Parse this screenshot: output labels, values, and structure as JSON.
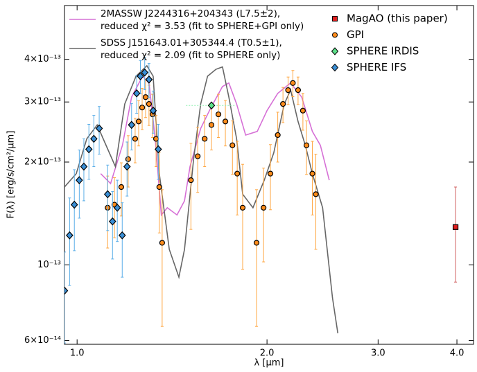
{
  "chart_data": {
    "type": "line",
    "x_label": "λ [μm]",
    "y_label": "F(λ) [erg/s/cm²/μm]",
    "x_log": true,
    "y_log": true,
    "xlim": [
      0.955,
      4.25
    ],
    "ylim": [
      5.85e-14,
      5.75e-13
    ],
    "xticks": [
      {
        "value": 1,
        "label": "1.0"
      },
      {
        "value": 2,
        "label": "2.0"
      },
      {
        "value": 3,
        "label": "3.0"
      },
      {
        "value": 4,
        "label": "4.0"
      }
    ],
    "yticks": [
      {
        "value": 6e-14,
        "label": "6×10⁻¹⁴"
      },
      {
        "value": 1e-13,
        "label": "10⁻¹³"
      },
      {
        "value": 2e-13,
        "label": "2×10⁻¹³"
      },
      {
        "value": 3e-13,
        "label": "3×10⁻¹³"
      },
      {
        "value": 4e-13,
        "label": "4×10⁻¹³"
      }
    ],
    "series": [
      {
        "type": "line",
        "name": "2MASSW J2244316+204343 (L7.5±2),",
        "fit_note": "reduced χ² = 3.53 (fit to SPHERE+GPI only)",
        "color": "#d670d6",
        "x": [
          1.09,
          1.13,
          1.18,
          1.22,
          1.27,
          1.3,
          1.33,
          1.36,
          1.39,
          1.44,
          1.48,
          1.51,
          1.57,
          1.63,
          1.7,
          1.74,
          1.79,
          1.85,
          1.93,
          2.0,
          2.08,
          2.18,
          2.27,
          2.36,
          2.43,
          2.51
        ],
        "values": [
          1.85e-13,
          1.73e-13,
          2.24e-13,
          3.1e-13,
          3.57e-13,
          3.41e-13,
          2.34e-13,
          1.4e-13,
          1.47e-13,
          1.4e-13,
          1.54e-13,
          1.94e-13,
          2.51e-13,
          2.89e-13,
          3.33e-13,
          3.41e-13,
          2.96e-13,
          2.4e-13,
          2.46e-13,
          2.83e-13,
          3.18e-13,
          3.41e-13,
          3.1e-13,
          2.46e-13,
          2.24e-13,
          1.77e-13
        ]
      },
      {
        "type": "line",
        "name": "SDSS J151643.01+305344.4 (T0.5±1),",
        "fit_note": "reduced χ² = 2.09 (fit to SPHERE only)",
        "color": "#666666",
        "x": [
          0.955,
          0.997,
          1.036,
          1.076,
          1.1,
          1.15,
          1.19,
          1.24,
          1.29,
          1.32,
          1.35,
          1.4,
          1.45,
          1.48,
          1.53,
          1.57,
          1.61,
          1.66,
          1.7,
          1.74,
          1.79,
          1.83,
          1.9,
          1.98,
          2.05,
          2.13,
          2.18,
          2.24,
          2.3,
          2.36,
          2.45,
          2.54,
          2.59
        ],
        "values": [
          1.69e-13,
          1.85e-13,
          2.34e-13,
          2.57e-13,
          2.34e-13,
          1.94e-13,
          2.96e-13,
          3.57e-13,
          3.83e-13,
          3.57e-13,
          1.85e-13,
          1.11e-13,
          9.2e-14,
          1.11e-13,
          2.04e-13,
          2.96e-13,
          3.57e-13,
          3.74e-13,
          3.8e-13,
          3.1e-13,
          2.34e-13,
          1.61e-13,
          1.47e-13,
          1.77e-13,
          2.13e-13,
          2.96e-13,
          3.25e-13,
          2.63e-13,
          2.24e-13,
          1.85e-13,
          1.47e-13,
          8e-14,
          6.3e-14
        ]
      },
      {
        "type": "errorbar",
        "name": "MagAO (this paper)",
        "marker": "square",
        "color": "#e02020",
        "err_color": "#d06060",
        "x": [
          3.98
        ],
        "values": [
          1.29e-13
        ],
        "errors": [
          4e-14
        ]
      },
      {
        "type": "errorbar",
        "name": "GPI",
        "marker": "circle",
        "color": "#ff8c1a",
        "err_color": "#ffa640",
        "x": [
          1.118,
          1.146,
          1.175,
          1.205,
          1.236,
          1.252,
          1.268,
          1.284,
          1.3,
          1.317,
          1.334,
          1.35,
          1.364,
          1.515,
          1.553,
          1.593,
          1.633,
          1.675,
          1.718,
          1.763,
          1.794,
          1.83,
          1.925,
          1.975,
          2.025,
          2.08,
          2.12,
          2.16,
          2.198,
          2.24,
          2.28,
          2.31,
          2.36,
          2.39
        ],
        "values": [
          1.47e-13,
          1.5e-13,
          1.69e-13,
          2.04e-13,
          2.34e-13,
          2.63e-13,
          2.89e-13,
          3.1e-13,
          2.96e-13,
          2.76e-13,
          2.34e-13,
          1.69e-13,
          1.16e-13,
          1.77e-13,
          2.08e-13,
          2.34e-13,
          2.57e-13,
          2.76e-13,
          2.63e-13,
          2.24e-13,
          1.85e-13,
          1.47e-13,
          1.16e-13,
          1.47e-13,
          1.85e-13,
          2.4e-13,
          2.96e-13,
          3.25e-13,
          3.41e-13,
          3.25e-13,
          2.83e-13,
          2.24e-13,
          1.85e-13,
          1.61e-13
        ],
        "errors": [
          3.5e-14,
          3e-14,
          3e-14,
          3.5e-14,
          3.5e-14,
          4e-14,
          4e-14,
          4e-14,
          4e-14,
          4e-14,
          4e-14,
          4.5e-14,
          5e-14,
          5e-14,
          4.5e-14,
          4e-14,
          4e-14,
          4e-14,
          4e-14,
          4e-14,
          4.5e-14,
          5e-14,
          5e-14,
          4.5e-14,
          4e-14,
          4e-14,
          3.5e-14,
          3e-14,
          3e-14,
          3e-14,
          3.5e-14,
          4e-14,
          4.5e-14,
          5e-14
        ]
      },
      {
        "type": "errorbar",
        "name": "SPHERE IRDIS",
        "marker": "diamond",
        "color": "#5de08a",
        "err_color": "#8ff0b0",
        "x": [
          1.633
        ],
        "values": [
          2.93e-13
        ],
        "errors": [
          4e-15
        ],
        "x_errors": [
          0.145
        ]
      },
      {
        "type": "errorbar",
        "name": "SPHERE IFS",
        "marker": "diamond",
        "color": "#3a8fd6",
        "err_color": "#5aaee8",
        "x": [
          0.955,
          0.973,
          0.99,
          1.008,
          1.025,
          1.044,
          1.063,
          1.084,
          1.118,
          1.138,
          1.158,
          1.179,
          1.2,
          1.22,
          1.243,
          1.26,
          1.28,
          1.3,
          1.32,
          1.345
        ],
        "values": [
          8.4e-14,
          1.22e-13,
          1.5e-13,
          1.77e-13,
          1.94e-13,
          2.18e-13,
          2.34e-13,
          2.51e-13,
          1.61e-13,
          1.34e-13,
          1.47e-13,
          1.22e-13,
          1.94e-13,
          2.57e-13,
          3.18e-13,
          3.57e-13,
          3.66e-13,
          3.49e-13,
          2.83e-13,
          2.18e-13
        ],
        "errors": [
          2.5e-14,
          3.5e-14,
          4e-14,
          4e-14,
          4e-14,
          4e-14,
          4e-14,
          4e-14,
          3.5e-14,
          3e-14,
          3e-14,
          3e-14,
          3.5e-14,
          4e-14,
          4e-14,
          4e-14,
          4e-14,
          4e-14,
          4e-14,
          4e-14
        ]
      }
    ]
  }
}
